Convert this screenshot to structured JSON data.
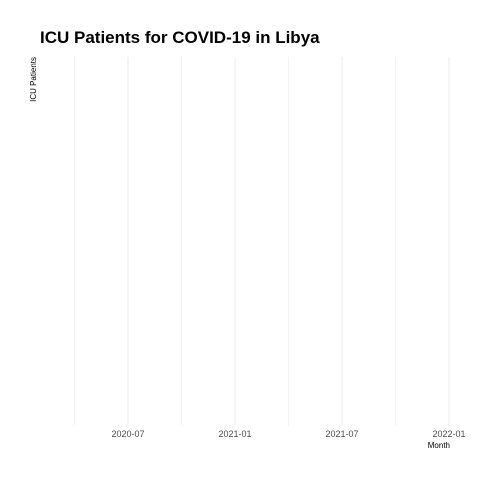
{
  "chart_data": {
    "type": "line",
    "title": "ICU Patients for COVID-19 in Libya",
    "xlabel": "Month",
    "ylabel": "ICU Patients",
    "x_scale": "date",
    "xlim": [
      "2020-03-01",
      "2022-01-01"
    ],
    "x_ticks": [
      "2020-07",
      "2021-01",
      "2021-07",
      "2022-01"
    ],
    "x_minor_gridlines": [
      "2020-04",
      "2020-10",
      "2021-04",
      "2021-10"
    ],
    "y_ticks": [],
    "grid": true,
    "legend": "none",
    "series": [
      {
        "values": []
      }
    ]
  }
}
